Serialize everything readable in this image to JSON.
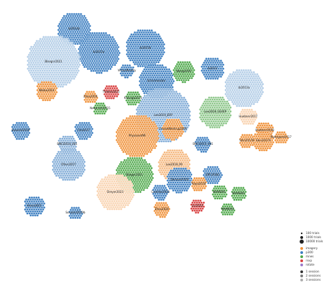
{
  "colors": {
    "imagery": "#f0923a",
    "p300": "#3d7fc1",
    "mnes": "#4ea84a",
    "rsvp": "#d94040",
    "rotate": "#9c79c9",
    "background": "#ffffff",
    "dot_edge": "#ffffff"
  },
  "legend": {
    "size_items": [
      {
        "label": "100 trials",
        "size": 100
      },
      {
        "label": "1000 trials",
        "size": 1000
      },
      {
        "label": "10000 trials",
        "size": 10000
      }
    ],
    "color_items": [
      {
        "label": "imagery",
        "color_key": "imagery"
      },
      {
        "label": "p300",
        "color_key": "p300"
      },
      {
        "label": "mnes",
        "color_key": "mnes"
      },
      {
        "label": "rsvp",
        "color_key": "rsvp"
      },
      {
        "label": "rotate",
        "color_key": "rotate"
      }
    ],
    "session_items": [
      {
        "label": "1 session",
        "sessions": 1
      },
      {
        "label": "2 sessions",
        "sessions": 2
      },
      {
        "label": "3 sessions",
        "sessions": 3
      }
    ]
  },
  "nodes": [
    {
      "label": "bi2014b",
      "paradigm": "p300",
      "sessions": 1,
      "trials": 1500
    },
    {
      "label": "bi2015a",
      "paradigm": "p300",
      "sessions": 1,
      "trials": 2600
    },
    {
      "label": "bi2015b",
      "paradigm": "p300",
      "sessions": 1,
      "trials": 2200
    },
    {
      "label": "BIsegnr2021",
      "paradigm": "p300",
      "sessions": 3,
      "trials": 4600
    },
    {
      "label": "VirtualReality",
      "paradigm": "p300",
      "sessions": 1,
      "trials": 120
    },
    {
      "label": "Schirrmeister",
      "paradigm": "p300",
      "sessions": 1,
      "trials": 1700
    },
    {
      "label": "Wang2016",
      "paradigm": "mnes",
      "sessions": 1,
      "trials": 500
    },
    {
      "label": "bi2012",
      "paradigm": "p300",
      "sessions": 1,
      "trials": 600
    },
    {
      "label": "bi2013a",
      "paradigm": "p300",
      "sessions": 3,
      "trials": 2200
    },
    {
      "label": "Weibo2014",
      "paradigm": "imagery",
      "sessions": 1,
      "trials": 400
    },
    {
      "label": "Zhou2016",
      "paradigm": "imagery",
      "sessions": 1,
      "trials": 100
    },
    {
      "label": "Nakanishi2015",
      "paradigm": "mnes",
      "sessions": 1,
      "trials": 100
    },
    {
      "label": "Thielen2021",
      "paradigm": "rsvp",
      "sessions": 1,
      "trials": 150
    },
    {
      "label": "Kalunga2016",
      "paradigm": "mnes",
      "sessions": 1,
      "trials": 150
    },
    {
      "label": "Lee2019_ERP",
      "paradigm": "p300",
      "sessions": 2,
      "trials": 5400
    },
    {
      "label": "Lee2019_SSVEP",
      "paradigm": "mnes",
      "sessions": 2,
      "trials": 1400
    },
    {
      "label": "Cho2017",
      "paradigm": "p300",
      "sessions": 1,
      "trials": 300
    },
    {
      "label": "PhysionetMI",
      "paradigm": "imagery",
      "sessions": 1,
      "trials": 2800
    },
    {
      "label": "Huebner2017",
      "paradigm": "imagery",
      "sessions": 3,
      "trials": 250
    },
    {
      "label": "Huebner2018",
      "paradigm": "imagery",
      "sessions": 1,
      "trials": 250
    },
    {
      "label": "Sosulski2019",
      "paradigm": "p300",
      "sessions": 1,
      "trials": 300
    },
    {
      "label": "BNCI2014_001",
      "paradigm": "p300",
      "sessions": 2,
      "trials": 300
    },
    {
      "label": "BNCI2015_001",
      "paradigm": "p300",
      "sessions": 1,
      "trials": 200
    },
    {
      "label": "Lee2019_MI",
      "paradigm": "imagery",
      "sessions": 2,
      "trials": 1400
    },
    {
      "label": "GrosseWentrup2009",
      "paradigm": "imagery",
      "sessions": 1,
      "trials": 500
    },
    {
      "label": "Shin2017A",
      "paradigm": "imagery",
      "sessions": 1,
      "trials": 400
    },
    {
      "label": "Shin2017B",
      "paradigm": "imagery",
      "sessions": 1,
      "trials": 150
    },
    {
      "label": "Rodrigues2017",
      "paradigm": "imagery",
      "sessions": 1,
      "trials": 100
    },
    {
      "label": "Ofner2017",
      "paradigm": "p300",
      "sessions": 2,
      "trials": 1500
    },
    {
      "label": "Stieger2021",
      "paradigm": "mnes",
      "sessions": 1,
      "trials": 2000
    },
    {
      "label": "DemonsP300",
      "paradigm": "p300",
      "sessions": 1,
      "trials": 800
    },
    {
      "label": "EPFLP300",
      "paradigm": "p300",
      "sessions": 1,
      "trials": 350
    },
    {
      "label": "Kaya2018",
      "paradigm": "imagery",
      "sessions": 1,
      "trials": 150
    },
    {
      "label": "MAMEM1",
      "paradigm": "mnes",
      "sessions": 1,
      "trials": 150
    },
    {
      "label": "MAMEM2",
      "paradigm": "mnes",
      "sessions": 1,
      "trials": 150
    },
    {
      "label": "MAMEM3",
      "paradigm": "mnes",
      "sessions": 1,
      "trials": 100
    },
    {
      "label": "Zhou2020",
      "paradigm": "imagery",
      "sessions": 1,
      "trials": 200
    },
    {
      "label": "Castillos2023",
      "paradigm": "p300",
      "sessions": 1,
      "trials": 200
    },
    {
      "label": "Liu2024",
      "paradigm": "rsvp",
      "sessions": 1,
      "trials": 120
    },
    {
      "label": "Dreyer2023",
      "paradigm": "imagery",
      "sessions": 3,
      "trials": 2000
    },
    {
      "label": "Hinss2021",
      "paradigm": "p300",
      "sessions": 1,
      "trials": 400
    },
    {
      "label": "Sosulski2019b",
      "paradigm": "p300",
      "sessions": 1,
      "trials": 100
    }
  ]
}
